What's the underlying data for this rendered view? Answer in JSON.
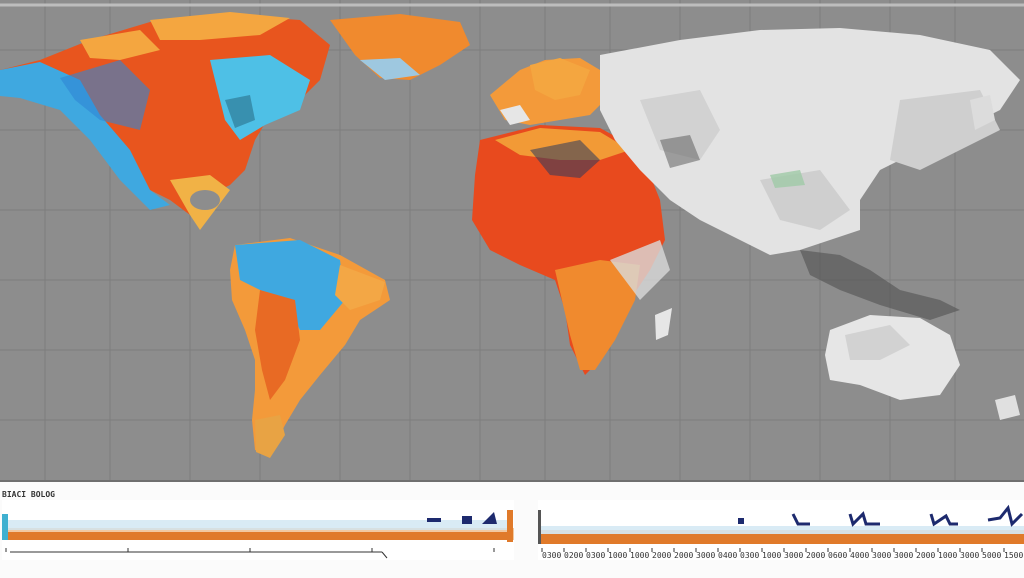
{
  "strip": {
    "label": "BIACI BOLOG"
  },
  "colors": {
    "ocean": "#8d8d8d",
    "hot": "#e84a1e",
    "warm": "#f39a3a",
    "cool": "#3fa8e0",
    "cold_grey": "#e6e6e6",
    "timeline_bar": "#e07a2a",
    "timeline_marker": "#1d2a6e"
  },
  "left_timeline": {
    "ticks": [
      "",
      "",
      "",
      "",
      ""
    ]
  },
  "right_timeline": {
    "ticks": [
      "0300",
      "0200",
      "0300",
      "1000",
      "1000",
      "2000",
      "2000",
      "3000",
      "0400",
      "0300",
      "1000",
      "3000",
      "2000",
      "0600",
      "4000",
      "3000",
      "3000",
      "2000",
      "1000",
      "3000",
      "5000",
      "1500"
    ]
  }
}
